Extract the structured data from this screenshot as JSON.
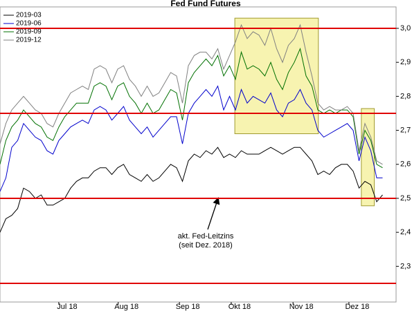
{
  "chart_data": {
    "type": "line",
    "title": "Fed Fund Futures",
    "xlim": [
      0,
      67.3
    ],
    "ylim": [
      2.195,
      3.063
    ],
    "xticks": [
      {
        "value": 11.4,
        "label": "Jul 18"
      },
      {
        "value": 21.5,
        "label": "Aug 18"
      },
      {
        "value": 31.9,
        "label": "Sep 18"
      },
      {
        "value": 40.7,
        "label": "Okt 18"
      },
      {
        "value": 51.2,
        "label": "Nov 18"
      },
      {
        "value": 60.7,
        "label": "Dez 18"
      }
    ],
    "yticks": [
      {
        "value": 2.3,
        "label": "2,3"
      },
      {
        "value": 2.4,
        "label": "2,4"
      },
      {
        "value": 2.5,
        "label": "2,5"
      },
      {
        "value": 2.6,
        "label": "2,6"
      },
      {
        "value": 2.7,
        "label": "2,7"
      },
      {
        "value": 2.8,
        "label": "2,8"
      },
      {
        "value": 2.9,
        "label": "2,9"
      },
      {
        "value": 3.0,
        "label": "3,0"
      }
    ],
    "legend": "top-left",
    "reference_lines": {
      "values": [
        3.0,
        2.75,
        2.5,
        2.25
      ],
      "color": "#e00000"
    },
    "highlight_boxes": [
      {
        "x": [
          39.9,
          54.1
        ],
        "y": [
          2.69,
          3.03
        ]
      },
      {
        "x": [
          61.4,
          63.6
        ],
        "y": [
          2.478,
          2.764
        ]
      }
    ],
    "annotation": [
      "akt. Fed-Leitzins",
      "(seit Dez. 2018)"
    ],
    "series": [
      {
        "name": "2019-03",
        "color": "#000000",
        "values": [
          2.4,
          2.44,
          2.45,
          2.47,
          2.53,
          2.52,
          2.5,
          2.51,
          2.48,
          2.48,
          2.49,
          2.5,
          2.53,
          2.55,
          2.56,
          2.56,
          2.58,
          2.59,
          2.59,
          2.57,
          2.59,
          2.6,
          2.57,
          2.56,
          2.55,
          2.57,
          2.55,
          2.56,
          2.58,
          2.6,
          2.59,
          2.55,
          2.61,
          2.63,
          2.62,
          2.64,
          2.63,
          2.65,
          2.62,
          2.63,
          2.62,
          2.64,
          2.63,
          2.63,
          2.63,
          2.64,
          2.65,
          2.64,
          2.63,
          2.64,
          2.65,
          2.65,
          2.63,
          2.61,
          2.57,
          2.58,
          2.57,
          2.59,
          2.6,
          2.6,
          2.58,
          2.53,
          2.55,
          2.54,
          2.49,
          2.51
        ]
      },
      {
        "name": "2019-06",
        "color": "#0000cc",
        "values": [
          2.52,
          2.56,
          2.65,
          2.67,
          2.72,
          2.7,
          2.68,
          2.67,
          2.64,
          2.63,
          2.67,
          2.69,
          2.71,
          2.72,
          2.73,
          2.72,
          2.76,
          2.77,
          2.76,
          2.73,
          2.75,
          2.77,
          2.73,
          2.71,
          2.69,
          2.71,
          2.68,
          2.7,
          2.72,
          2.74,
          2.74,
          2.66,
          2.75,
          2.78,
          2.8,
          2.82,
          2.8,
          2.83,
          2.76,
          2.8,
          2.76,
          2.82,
          2.78,
          2.8,
          2.79,
          2.78,
          2.81,
          2.76,
          2.74,
          2.78,
          2.79,
          2.82,
          2.78,
          2.76,
          2.7,
          2.68,
          2.69,
          2.7,
          2.71,
          2.72,
          2.7,
          2.61,
          2.68,
          2.64,
          2.56,
          2.56
        ]
      },
      {
        "name": "2019-09",
        "color": "#007000",
        "values": [
          2.6,
          2.67,
          2.71,
          2.73,
          2.76,
          2.74,
          2.72,
          2.71,
          2.68,
          2.67,
          2.71,
          2.74,
          2.76,
          2.78,
          2.78,
          2.78,
          2.83,
          2.84,
          2.83,
          2.79,
          2.83,
          2.84,
          2.8,
          2.78,
          2.75,
          2.78,
          2.75,
          2.76,
          2.79,
          2.82,
          2.81,
          2.73,
          2.84,
          2.87,
          2.89,
          2.91,
          2.89,
          2.92,
          2.86,
          2.89,
          2.85,
          2.93,
          2.88,
          2.89,
          2.88,
          2.86,
          2.9,
          2.85,
          2.82,
          2.87,
          2.9,
          2.94,
          2.86,
          2.83,
          2.76,
          2.75,
          2.76,
          2.75,
          2.76,
          2.76,
          2.74,
          2.63,
          2.7,
          2.67,
          2.6,
          2.59
        ]
      },
      {
        "name": "2019-12",
        "color": "#808080",
        "values": [
          2.66,
          2.72,
          2.76,
          2.78,
          2.8,
          2.78,
          2.76,
          2.75,
          2.72,
          2.71,
          2.75,
          2.78,
          2.81,
          2.82,
          2.83,
          2.82,
          2.88,
          2.89,
          2.88,
          2.84,
          2.88,
          2.89,
          2.85,
          2.83,
          2.8,
          2.83,
          2.8,
          2.81,
          2.84,
          2.87,
          2.86,
          2.78,
          2.89,
          2.92,
          2.93,
          2.93,
          2.91,
          2.94,
          2.88,
          2.92,
          2.96,
          3.01,
          2.97,
          2.99,
          2.98,
          2.95,
          3.0,
          2.94,
          2.9,
          2.95,
          2.97,
          3.01,
          2.93,
          2.86,
          2.78,
          2.76,
          2.77,
          2.76,
          2.76,
          2.77,
          2.75,
          2.64,
          2.72,
          2.68,
          2.61,
          2.6
        ]
      }
    ]
  }
}
